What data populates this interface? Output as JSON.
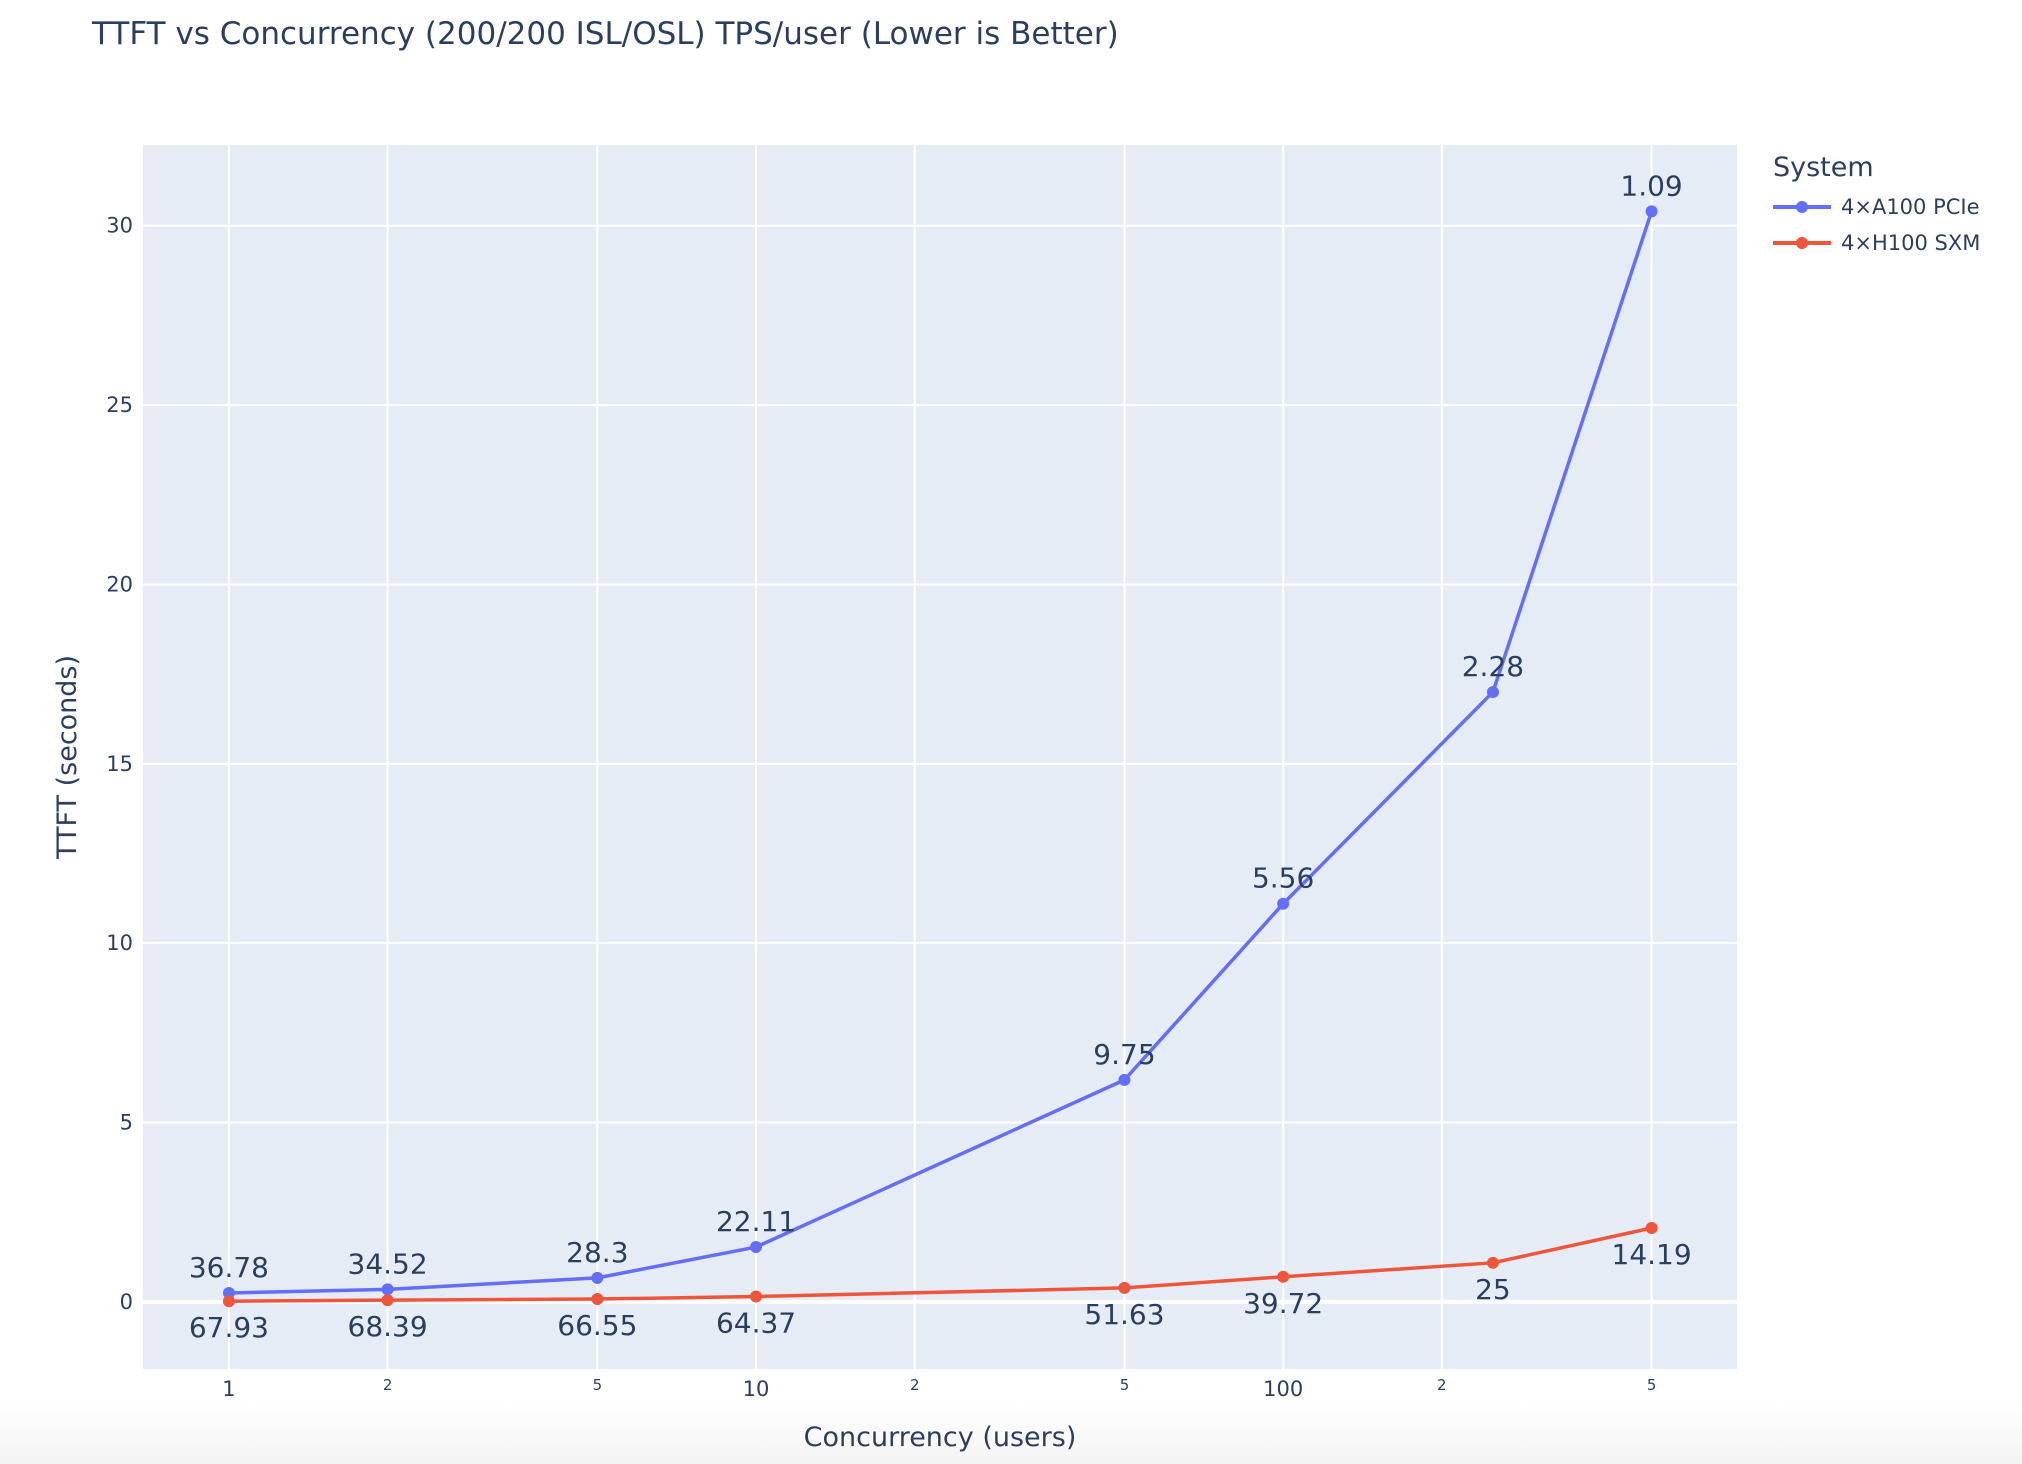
{
  "title": "TTFT vs Concurrency (200/200 ISL/OSL) TPS/user (Lower is Better)",
  "colors": {
    "plot_bg": "#e5ecf6",
    "grid": "#ffffff",
    "text": "#2a3f5f",
    "a100": "#636efa",
    "h100": "#ef553b"
  },
  "legend": {
    "title": "System",
    "items": [
      {
        "label": "4×A100 PCIe",
        "color": "#636efa"
      },
      {
        "label": "4×H100 SXM",
        "color": "#ef553b"
      }
    ]
  },
  "chart_data": {
    "type": "line",
    "title": "TTFT vs Concurrency (200/200 ISL/OSL) TPS/user (Lower is Better)",
    "xlabel": "Concurrency (users)",
    "ylabel": "TTFT (seconds)",
    "x_scale": "log",
    "x": [
      1,
      2,
      5,
      10,
      50,
      100,
      250,
      500
    ],
    "xlim_log10": [
      -0.163,
      2.861
    ],
    "ylim": [
      -1.87,
      32.25
    ],
    "x_ticks": [
      {
        "value": 1,
        "label": "1",
        "major": true
      },
      {
        "value": 2,
        "label": "2",
        "major": false
      },
      {
        "value": 5,
        "label": "5",
        "major": false
      },
      {
        "value": 10,
        "label": "10",
        "major": true
      },
      {
        "value": 20,
        "label": "2",
        "major": false
      },
      {
        "value": 50,
        "label": "5",
        "major": false
      },
      {
        "value": 100,
        "label": "100",
        "major": true
      },
      {
        "value": 200,
        "label": "2",
        "major": false
      },
      {
        "value": 500,
        "label": "5",
        "major": false
      }
    ],
    "y_ticks": [
      0,
      5,
      10,
      15,
      20,
      25,
      30
    ],
    "grid": true,
    "legend_position": "right-top",
    "legend_title": "System",
    "series": [
      {
        "name": "4×A100 PCIe",
        "color": "#636efa",
        "values": [
          0.25,
          0.35,
          0.67,
          1.53,
          6.19,
          11.1,
          17.0,
          30.4
        ],
        "text_labels": [
          "36.78",
          "34.52",
          "28.3",
          "22.11",
          "9.75",
          "5.56",
          "2.28",
          "1.09"
        ],
        "text_position": "top"
      },
      {
        "name": "4×H100 SXM",
        "color": "#ef553b",
        "values": [
          0.02,
          0.05,
          0.08,
          0.15,
          0.39,
          0.7,
          1.09,
          2.06
        ],
        "text_labels": [
          "67.93",
          "68.39",
          "66.55",
          "64.37",
          "51.63",
          "39.72",
          "25",
          "14.19"
        ],
        "text_position": "bottom"
      }
    ]
  }
}
